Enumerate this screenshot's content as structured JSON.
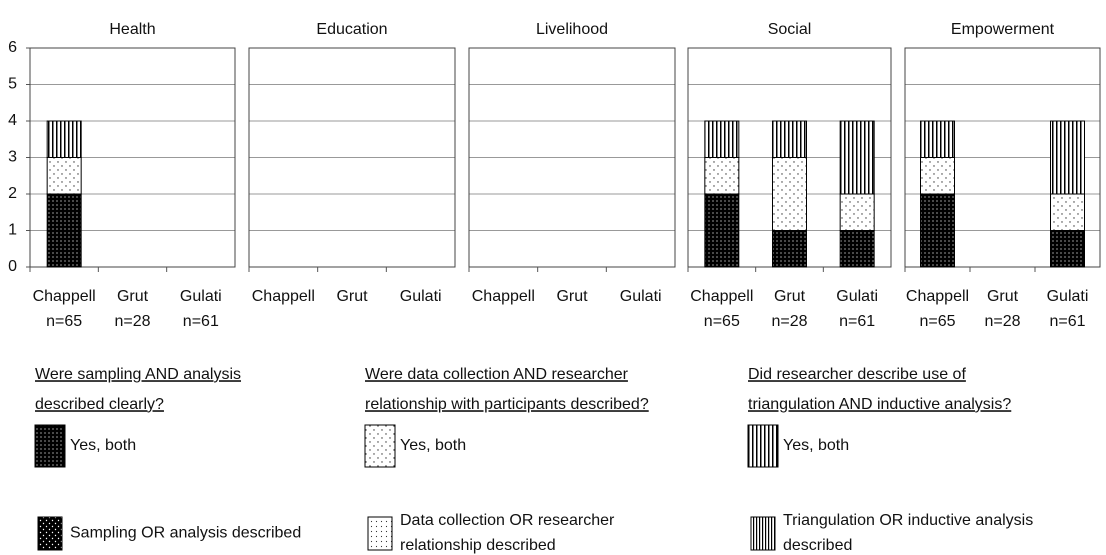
{
  "chart_data": {
    "type": "bar",
    "stacked": true,
    "ylim": [
      0,
      6
    ],
    "yticks": [
      0,
      1,
      2,
      3,
      4,
      5,
      6
    ],
    "grid": true,
    "series": [
      {
        "name": [
          "Were sampling AND analysis",
          "described clearly?"
        ],
        "color": "#000000",
        "pattern": "dots-dark",
        "legend_entries": [
          [
            "Yes, both"
          ],
          [
            "Sampling OR analysis described"
          ]
        ]
      },
      {
        "name": [
          "Were data collection AND researcher",
          "relationship with participants described?"
        ],
        "color": "#ffffff",
        "pattern": "dots-light",
        "legend_entries": [
          [
            "Yes, both"
          ],
          [
            "Data collection OR researcher",
            "relationship described"
          ]
        ]
      },
      {
        "name": [
          "Did researcher describe use of",
          "triangulation AND inductive analysis?"
        ],
        "color": "#ffffff",
        "pattern": "vertical-stripes",
        "legend_entries": [
          [
            "Yes, both"
          ],
          [
            "Triangulation OR inductive analysis",
            "described"
          ]
        ]
      }
    ],
    "panels": [
      {
        "title": "Health",
        "categories": [
          "Chappell",
          "Grut",
          "Gulati"
        ],
        "sample_sizes": [
          "n=65",
          "n=28",
          "n=61"
        ],
        "values": [
          [
            2,
            0,
            0
          ],
          [
            1,
            0,
            0
          ],
          [
            1,
            0,
            0
          ]
        ]
      },
      {
        "title": "Education",
        "categories": [
          "Chappell",
          "Grut",
          "Gulati"
        ],
        "values": [
          [
            0,
            0,
            0
          ],
          [
            0,
            0,
            0
          ],
          [
            0,
            0,
            0
          ]
        ]
      },
      {
        "title": "Livelihood",
        "categories": [
          "Chappell",
          "Grut",
          "Gulati"
        ],
        "values": [
          [
            0,
            0,
            0
          ],
          [
            0,
            0,
            0
          ],
          [
            0,
            0,
            0
          ]
        ]
      },
      {
        "title": "Social",
        "categories": [
          "Chappell",
          "Grut",
          "Gulati"
        ],
        "sample_sizes": [
          "n=65",
          "n=28",
          "n=61"
        ],
        "values": [
          [
            2,
            1,
            1
          ],
          [
            1,
            2,
            1
          ],
          [
            1,
            1,
            2
          ]
        ]
      },
      {
        "title": "Empowerment",
        "categories": [
          "Chappell",
          "Grut",
          "Gulati"
        ],
        "sample_sizes": [
          "n=65",
          "n=28",
          "n=61"
        ],
        "values": [
          [
            2,
            0,
            1
          ],
          [
            1,
            0,
            1
          ],
          [
            1,
            0,
            2
          ]
        ]
      }
    ]
  }
}
